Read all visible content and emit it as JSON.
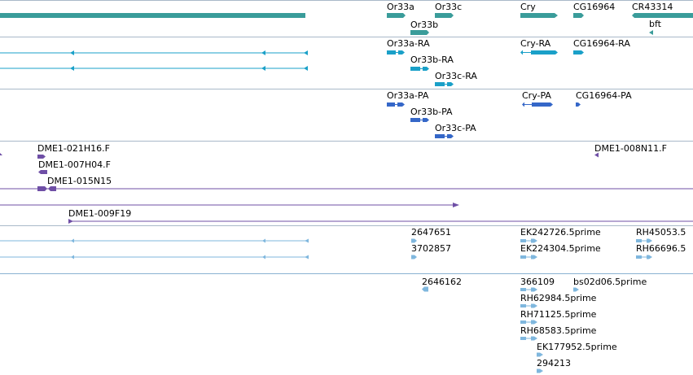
{
  "colors": {
    "gene": "#3a9c9a",
    "transcript_rna": "#1aa0c8",
    "transcript_protein": "#3567c8",
    "clone": "#6f4fa6",
    "est": "#7fb7de",
    "separator": "#a9b9c9",
    "est_separator": "#8ab2d2"
  },
  "tracks": {
    "genes": {
      "labels": [
        "Or33a",
        "Or33c",
        "Or33b",
        "Cry",
        "CG16964",
        "CR43314",
        "bft"
      ]
    },
    "rna": {
      "labels": [
        "Or33a-RA",
        "Or33b-RA",
        "Or33c-RA",
        "Cry-RA",
        "CG16964-RA"
      ]
    },
    "protein": {
      "labels": [
        "Or33a-PA",
        "Or33b-PA",
        "Or33c-PA",
        "Cry-PA",
        "CG16964-PA"
      ]
    },
    "clones": {
      "labels": [
        "DME1-021H16.F",
        "DME1-007H04.F",
        "DME1-015N15",
        "DME1-009F19",
        "DME1-008N11.F"
      ]
    },
    "ests_a": {
      "labels": [
        "2647651",
        "3702857",
        "EK242726.5prime",
        "EK224304.5prime",
        "RH45053.5",
        "RH66696.5"
      ]
    },
    "ests_b": {
      "labels": [
        "2646162",
        "366109",
        "bs02d06.5prime",
        "RH62984.5prime",
        "RH71125.5prime",
        "RH68583.5prime",
        "EK177952.5prime",
        "294213"
      ]
    }
  }
}
